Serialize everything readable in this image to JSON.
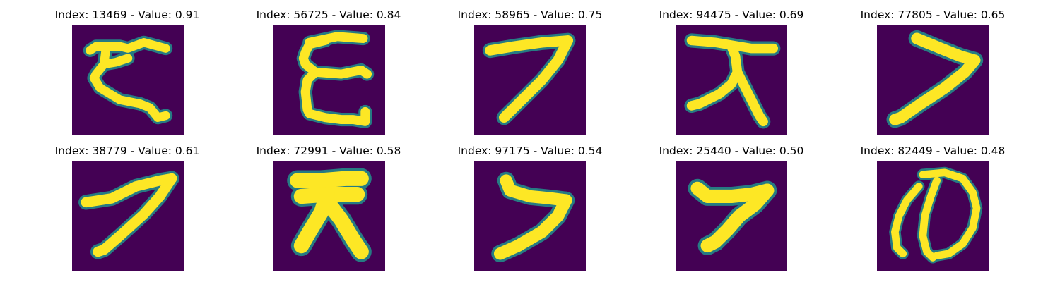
{
  "colormap": {
    "background": "#440154",
    "edge": "#21918c",
    "mid": "#35b779",
    "stroke": "#fde725"
  },
  "panels": [
    {
      "index": "13469",
      "value": "0.91",
      "title": "Index: 13469 - Value: 0.91",
      "glyph": "ku-hiragana-glyph"
    },
    {
      "index": "56725",
      "value": "0.84",
      "title": "Index: 56725 - Value: 0.84",
      "glyph": "e-kana-glyph"
    },
    {
      "index": "58965",
      "value": "0.75",
      "title": "Index: 58965 - Value: 0.75",
      "glyph": "seven-like-glyph"
    },
    {
      "index": "94475",
      "value": "0.69",
      "title": "Index: 94475 - Value: 0.69",
      "glyph": "dai-kanji-glyph"
    },
    {
      "index": "77805",
      "value": "0.65",
      "title": "Index: 77805 - Value: 0.65",
      "glyph": "seven-like-glyph"
    },
    {
      "index": "38779",
      "value": "0.61",
      "title": "Index: 38779 - Value: 0.61",
      "glyph": "seven-like-glyph"
    },
    {
      "index": "72991",
      "value": "0.58",
      "title": "Index: 72991 - Value: 0.58",
      "glyph": "dai-kanji-glyph"
    },
    {
      "index": "97175",
      "value": "0.54",
      "title": "Index: 97175 - Value: 0.54",
      "glyph": "seven-like-glyph"
    },
    {
      "index": "25440",
      "value": "0.50",
      "title": "Index: 25440 - Value: 0.50",
      "glyph": "seven-like-glyph"
    },
    {
      "index": "82449",
      "value": "0.48",
      "title": "Index: 82449 - Value: 0.48",
      "glyph": "no-hiragana-glyph"
    }
  ]
}
